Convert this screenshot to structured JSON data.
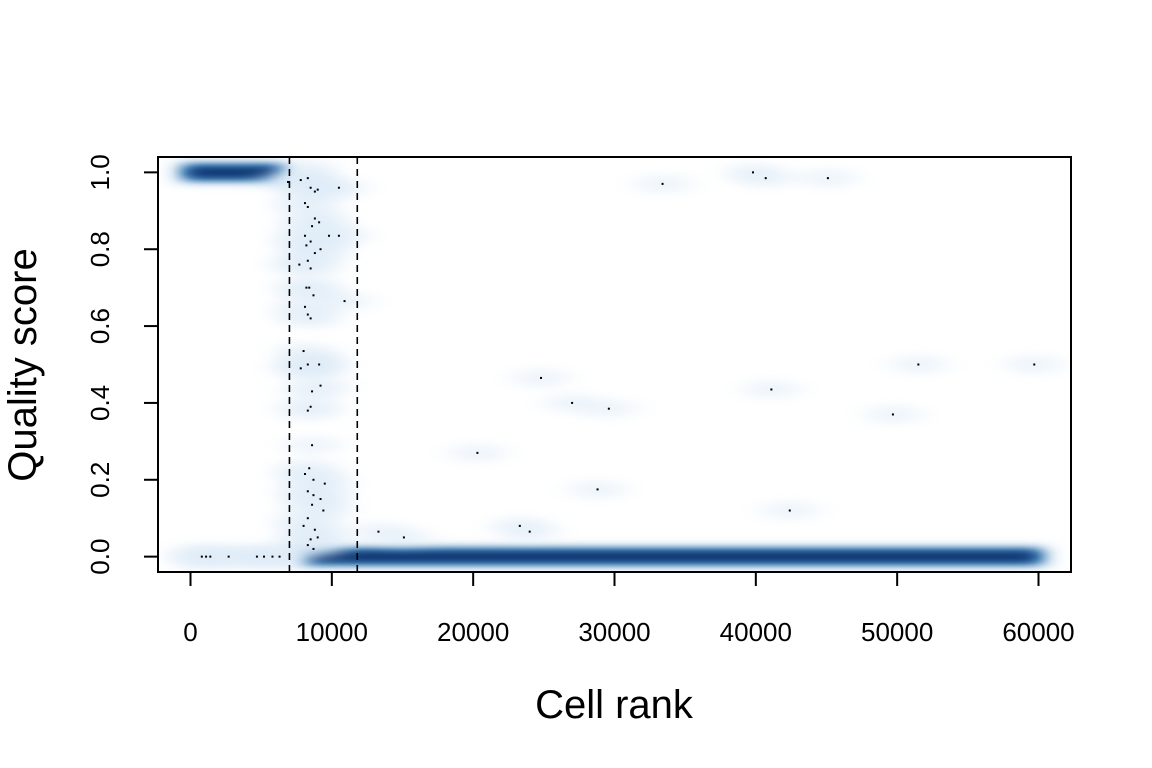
{
  "chart_data": {
    "type": "scatter",
    "style": "smoothed-density",
    "title": "",
    "xlabel": "Cell rank",
    "ylabel": "Quality score",
    "xlim": [
      -2300,
      62300
    ],
    "ylim": [
      -0.04,
      1.04
    ],
    "x_ticks": [
      0,
      10000,
      20000,
      30000,
      40000,
      50000,
      60000
    ],
    "x_tick_labels": [
      "0",
      "10000",
      "20000",
      "30000",
      "40000",
      "50000",
      "60000"
    ],
    "y_ticks": [
      0.0,
      0.2,
      0.4,
      0.6,
      0.8,
      1.0
    ],
    "y_tick_labels": [
      "0.0",
      "0.2",
      "0.4",
      "0.6",
      "0.8",
      "1.0"
    ],
    "grid": false,
    "colors": {
      "density_dark": "#08306b",
      "density_mid": "#2171b5",
      "density_light": "#deebf7",
      "points": "#000000",
      "lines": "#000000"
    },
    "vlines": [
      {
        "x": 7000,
        "style": "dashed"
      },
      {
        "x": 11800,
        "style": "dashed"
      }
    ],
    "bands": [
      {
        "x_start": -1000,
        "x_end": 7000,
        "y": 1.0,
        "intensity": 1.0
      },
      {
        "x_start": 7000,
        "x_end": 10000,
        "y": 1.0,
        "intensity": 0.25
      },
      {
        "x_start": 7500,
        "x_end": 60700,
        "y": 0.0,
        "intensity": 1.0
      },
      {
        "x_start": -1000,
        "x_end": 7500,
        "y": 0.0,
        "intensity": 0.15
      },
      {
        "x_start": 7200,
        "x_end": 10200,
        "y": 0.5,
        "intensity": 0.35
      }
    ],
    "points": [
      [
        800,
        0.0
      ],
      [
        1100,
        0.0
      ],
      [
        1400,
        0.0
      ],
      [
        2700,
        0.0
      ],
      [
        4700,
        0.0
      ],
      [
        5200,
        0.0
      ],
      [
        5800,
        0.0
      ],
      [
        6300,
        0.0
      ],
      [
        6900,
        0.975
      ],
      [
        7800,
        0.98
      ],
      [
        8300,
        0.985
      ],
      [
        8500,
        0.96
      ],
      [
        8800,
        0.95
      ],
      [
        9000,
        0.955
      ],
      [
        10500,
        0.96
      ],
      [
        8100,
        0.92
      ],
      [
        8300,
        0.91
      ],
      [
        8800,
        0.88
      ],
      [
        8600,
        0.86
      ],
      [
        9100,
        0.87
      ],
      [
        8100,
        0.835
      ],
      [
        9800,
        0.835
      ],
      [
        10500,
        0.835
      ],
      [
        8500,
        0.82
      ],
      [
        8200,
        0.81
      ],
      [
        9200,
        0.8
      ],
      [
        8800,
        0.79
      ],
      [
        8300,
        0.77
      ],
      [
        7700,
        0.76
      ],
      [
        8500,
        0.75
      ],
      [
        8200,
        0.7
      ],
      [
        8400,
        0.7
      ],
      [
        8700,
        0.68
      ],
      [
        10900,
        0.665
      ],
      [
        8100,
        0.65
      ],
      [
        8300,
        0.63
      ],
      [
        8500,
        0.62
      ],
      [
        8000,
        0.535
      ],
      [
        8300,
        0.5
      ],
      [
        7800,
        0.49
      ],
      [
        9100,
        0.5
      ],
      [
        9200,
        0.445
      ],
      [
        8600,
        0.43
      ],
      [
        8500,
        0.39
      ],
      [
        8300,
        0.38
      ],
      [
        8600,
        0.29
      ],
      [
        8400,
        0.23
      ],
      [
        8100,
        0.215
      ],
      [
        8700,
        0.2
      ],
      [
        9500,
        0.19
      ],
      [
        8300,
        0.17
      ],
      [
        8700,
        0.16
      ],
      [
        9200,
        0.15
      ],
      [
        8600,
        0.135
      ],
      [
        9400,
        0.12
      ],
      [
        8300,
        0.1
      ],
      [
        8000,
        0.08
      ],
      [
        8800,
        0.07
      ],
      [
        9000,
        0.05
      ],
      [
        8500,
        0.045
      ],
      [
        8300,
        0.03
      ],
      [
        8700,
        0.02
      ],
      [
        13300,
        0.065
      ],
      [
        15100,
        0.05
      ],
      [
        23300,
        0.08
      ],
      [
        24000,
        0.065
      ],
      [
        24800,
        0.465
      ],
      [
        27000,
        0.4
      ],
      [
        29600,
        0.385
      ],
      [
        20300,
        0.27
      ],
      [
        28800,
        0.175
      ],
      [
        33400,
        0.97
      ],
      [
        39800,
        1.0
      ],
      [
        40700,
        0.985
      ],
      [
        45100,
        0.985
      ],
      [
        41100,
        0.435
      ],
      [
        42400,
        0.12
      ],
      [
        49700,
        0.37
      ],
      [
        51500,
        0.5
      ],
      [
        59700,
        0.5
      ]
    ]
  }
}
